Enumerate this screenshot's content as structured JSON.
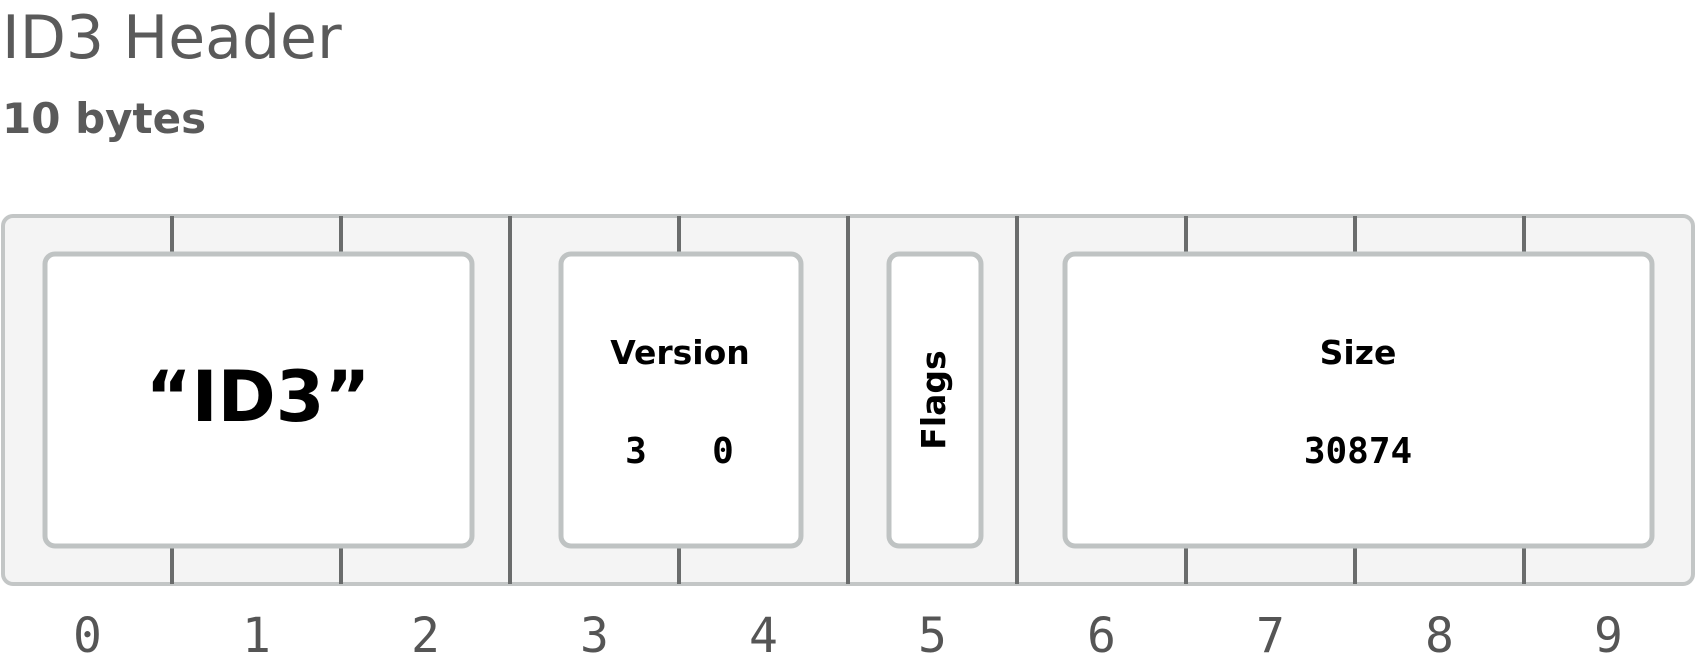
{
  "header": {
    "title": "ID3 Header",
    "subtitle": "10 bytes"
  },
  "fields": [
    {
      "label": "“ID3”",
      "start_byte": 0,
      "end_byte": 2
    },
    {
      "label": "Version",
      "start_byte": 3,
      "end_byte": 4,
      "values": [
        "3",
        "0"
      ]
    },
    {
      "label": "Flags",
      "start_byte": 5,
      "end_byte": 5,
      "vertical": true
    },
    {
      "label": "Size",
      "start_byte": 6,
      "end_byte": 9,
      "value": "30874"
    }
  ],
  "byte_indices": [
    "0",
    "1",
    "2",
    "3",
    "4",
    "5",
    "6",
    "7",
    "8",
    "9"
  ],
  "colors": {
    "strip_fill": "#f4f4f4",
    "strip_border": "#c3c6c6",
    "divider": "#6a6c6c",
    "box_fill": "#ffffff",
    "box_border": "#bfc3c3",
    "title_text": "#5a5a5a",
    "label_text": "#000000",
    "index_text": "#555555"
  }
}
